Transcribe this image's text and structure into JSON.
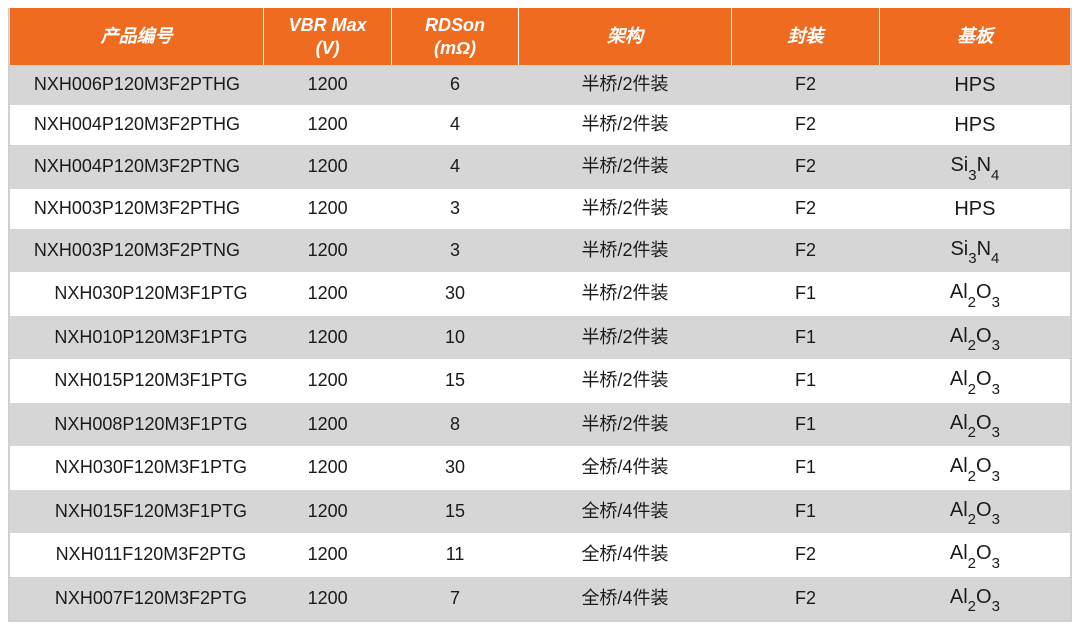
{
  "table": {
    "header_bg": "#ef6b1f",
    "header_text_color": "#ffffff",
    "row_even_bg": "#d6d6d6",
    "row_odd_bg": "#ffffff",
    "border_color": "#d0d0d0",
    "font_size_pt": 18,
    "columns": [
      {
        "key": "pn",
        "label": "产品编号",
        "width": "24%"
      },
      {
        "key": "vbr",
        "label": "VBR Max\n(V)",
        "width": "12%"
      },
      {
        "key": "rdson",
        "label": "RDSon\n(mΩ)",
        "width": "12%"
      },
      {
        "key": "arch",
        "label": "架构",
        "width": "20%"
      },
      {
        "key": "pkg",
        "label": "封装",
        "width": "14%"
      },
      {
        "key": "substrate",
        "label": "基板",
        "width": "18%"
      }
    ],
    "rows": [
      {
        "pn": "NXH006P120M3F2PTHG",
        "indent": false,
        "vbr": "1200",
        "rdson": "6",
        "arch": "半桥/2件装",
        "pkg": "F2",
        "substrate": "HPS"
      },
      {
        "pn": "NXH004P120M3F2PTHG",
        "indent": false,
        "vbr": "1200",
        "rdson": "4",
        "arch": "半桥/2件装",
        "pkg": "F2",
        "substrate": "HPS"
      },
      {
        "pn": "NXH004P120M3F2PTNG",
        "indent": false,
        "vbr": "1200",
        "rdson": "4",
        "arch": "半桥/2件装",
        "pkg": "F2",
        "substrate": "Si3N4"
      },
      {
        "pn": "NXH003P120M3F2PTHG",
        "indent": false,
        "vbr": "1200",
        "rdson": "3",
        "arch": "半桥/2件装",
        "pkg": "F2",
        "substrate": "HPS"
      },
      {
        "pn": "NXH003P120M3F2PTNG",
        "indent": false,
        "vbr": "1200",
        "rdson": "3",
        "arch": "半桥/2件装",
        "pkg": "F2",
        "substrate": "Si3N4"
      },
      {
        "pn": "NXH030P120M3F1PTG",
        "indent": true,
        "vbr": "1200",
        "rdson": "30",
        "arch": "半桥/2件装",
        "pkg": "F1",
        "substrate": "Al2O3"
      },
      {
        "pn": "NXH010P120M3F1PTG",
        "indent": true,
        "vbr": "1200",
        "rdson": "10",
        "arch": "半桥/2件装",
        "pkg": "F1",
        "substrate": "Al2O3"
      },
      {
        "pn": "NXH015P120M3F1PTG",
        "indent": true,
        "vbr": "1200",
        "rdson": "15",
        "arch": "半桥/2件装",
        "pkg": "F1",
        "substrate": "Al2O3"
      },
      {
        "pn": "NXH008P120M3F1PTG",
        "indent": true,
        "vbr": "1200",
        "rdson": "8",
        "arch": "半桥/2件装",
        "pkg": "F1",
        "substrate": "Al2O3"
      },
      {
        "pn": "NXH030F120M3F1PTG",
        "indent": true,
        "vbr": "1200",
        "rdson": "30",
        "arch": "全桥/4件装",
        "pkg": "F1",
        "substrate": "Al2O3"
      },
      {
        "pn": "NXH015F120M3F1PTG",
        "indent": true,
        "vbr": "1200",
        "rdson": "15",
        "arch": "全桥/4件装",
        "pkg": "F1",
        "substrate": "Al2O3"
      },
      {
        "pn": "NXH011F120M3F2PTG",
        "indent": true,
        "vbr": "1200",
        "rdson": "11",
        "arch": "全桥/4件装",
        "pkg": "F2",
        "substrate": "Al2O3"
      },
      {
        "pn": "NXH007F120M3F2PTG",
        "indent": true,
        "vbr": "1200",
        "rdson": "7",
        "arch": "全桥/4件装",
        "pkg": "F2",
        "substrate": "Al2O3"
      }
    ]
  }
}
